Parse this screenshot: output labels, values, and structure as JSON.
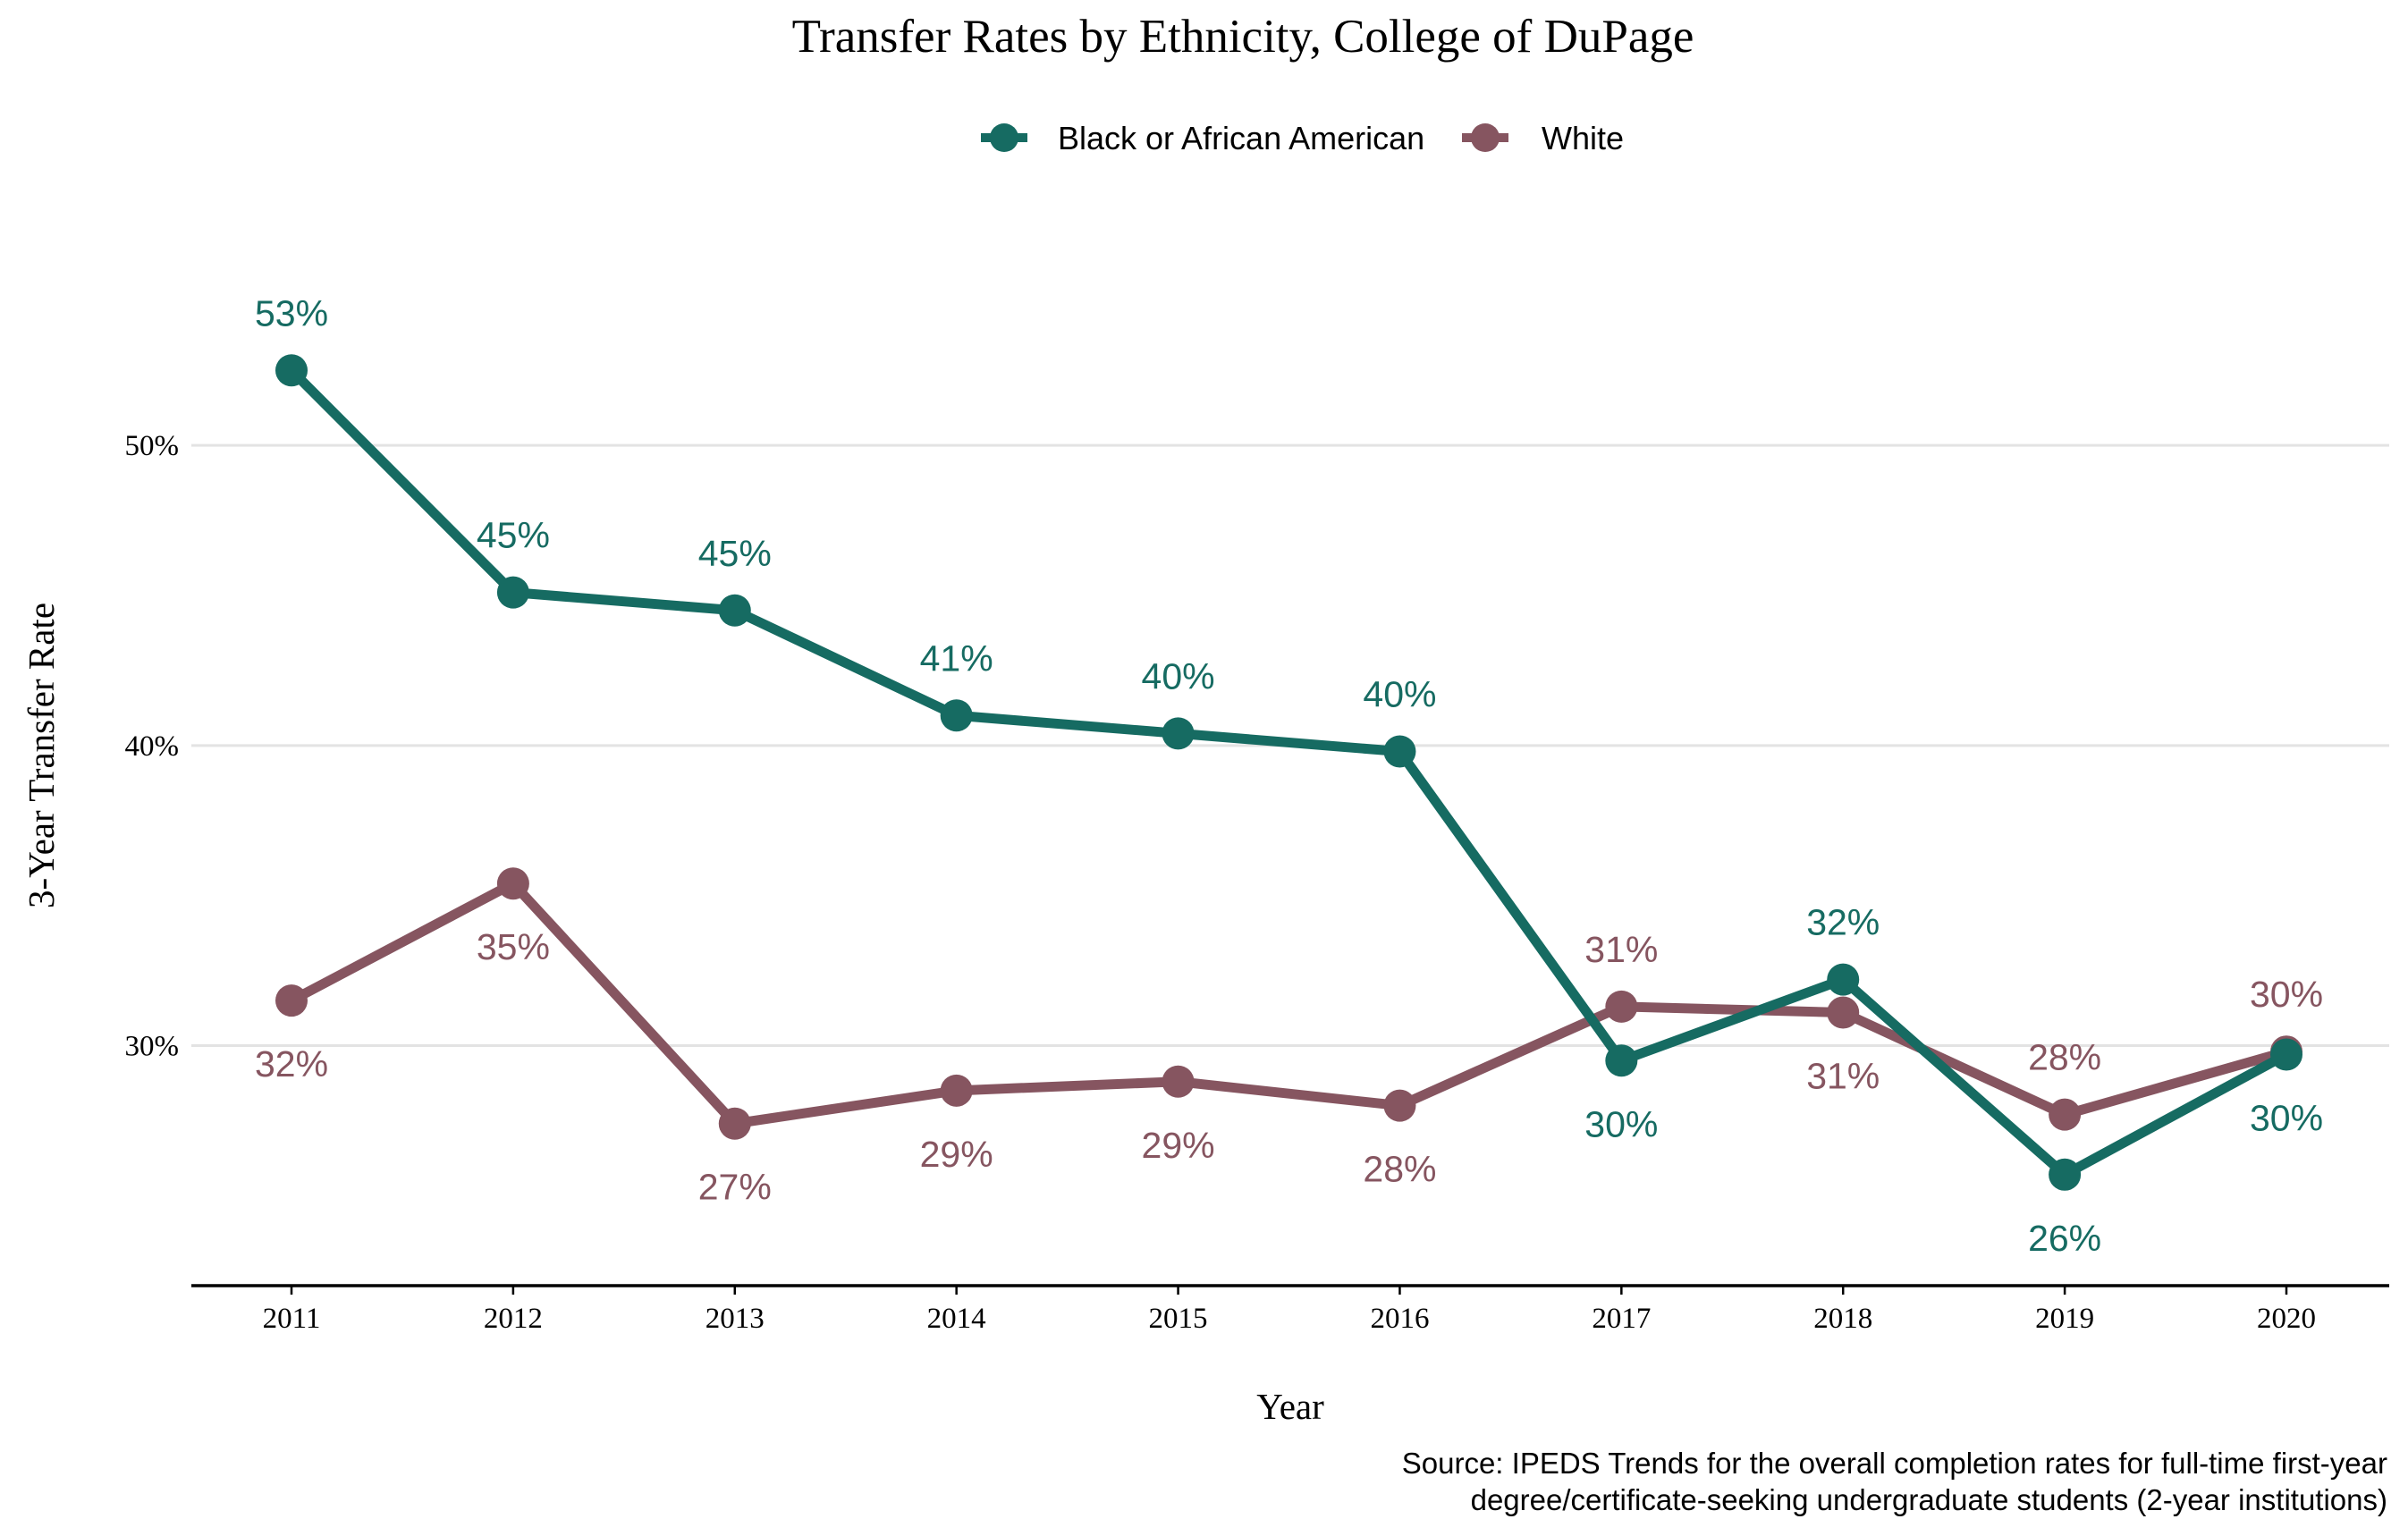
{
  "chart_data": {
    "type": "line",
    "title": "Transfer Rates by Ethnicity, College of DuPage",
    "xlabel": "Year",
    "ylabel": "3-Year Transfer Rate",
    "x": [
      "2011",
      "2012",
      "2013",
      "2014",
      "2015",
      "2016",
      "2017",
      "2018",
      "2019",
      "2020"
    ],
    "ylim": [
      0.22,
      0.565
    ],
    "yticks": [
      0.3,
      0.4,
      0.5
    ],
    "ytick_labels": [
      "30%",
      "40%",
      "50%"
    ],
    "grid": true,
    "legend_position": "top",
    "series": [
      {
        "name": "Black or African American",
        "color": "#166b62",
        "values": [
          0.525,
          0.451,
          0.445,
          0.41,
          0.404,
          0.398,
          0.295,
          0.322,
          0.257,
          0.297
        ],
        "labels": [
          "53%",
          "45%",
          "45%",
          "41%",
          "40%",
          "40%",
          "30%",
          "32%",
          "26%",
          "30%"
        ],
        "label_positions": [
          "above",
          "above",
          "above",
          "above",
          "above",
          "above",
          "below",
          "above",
          "below",
          "below"
        ]
      },
      {
        "name": "White",
        "color": "#865560",
        "values": [
          0.315,
          0.354,
          0.274,
          0.285,
          0.288,
          0.28,
          0.313,
          0.311,
          0.277,
          0.298
        ],
        "labels": [
          "32%",
          "35%",
          "27%",
          "29%",
          "29%",
          "28%",
          "31%",
          "31%",
          "28%",
          "30%"
        ],
        "label_positions": [
          "below",
          "below",
          "below",
          "below",
          "below",
          "below",
          "above",
          "below",
          "above",
          "above"
        ]
      }
    ],
    "caption": [
      "Source: IPEDS Trends for the overall completion rates for full-time first-year",
      "degree/certificate-seeking undergraduate students (2-year institutions)"
    ]
  }
}
